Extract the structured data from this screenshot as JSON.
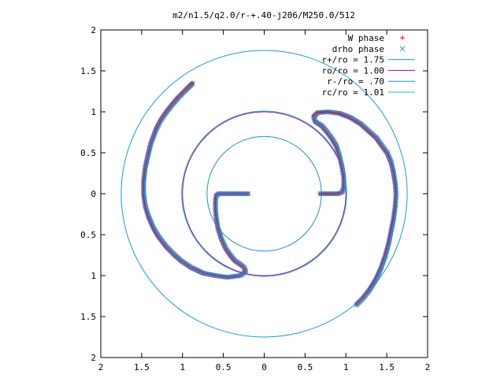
{
  "chart_data": {
    "type": "scatter",
    "title": "m2/n1.5/q2.0/r-+.40-j206/M250.0/512",
    "xlabel": "",
    "ylabel": "",
    "xlim": [
      -2,
      2
    ],
    "ylim": [
      -2,
      2
    ],
    "grid": false,
    "legend_position": "top-right",
    "x_ticks": [
      "2",
      "1.5",
      "1",
      "0.5",
      "0",
      "0.5",
      "1",
      "1.5",
      "2"
    ],
    "y_ticks": [
      "2",
      "1.5",
      "1",
      "0.5",
      "0",
      "0.5",
      "1",
      "1.5",
      "2"
    ],
    "circles": [
      {
        "name": "r+/ro = 1.75",
        "radius": 1.75,
        "color": "#1f9ad8"
      },
      {
        "name": "ro/ro = 1.00",
        "radius": 1.0,
        "color": "#a000a0"
      },
      {
        "name": "r-/ro = .70",
        "radius": 0.7,
        "color": "#1f8fd0"
      },
      {
        "name": "rc/ro = 1.01",
        "radius": 1.01,
        "color": "#20c0c0"
      }
    ],
    "series": [
      {
        "name": "W phase",
        "marker": "+",
        "color": "#e01010"
      },
      {
        "name": "drho phase",
        "marker": "x",
        "color": "#2a8ee6"
      }
    ],
    "arm_paths": [
      [
        [
          -0.2,
          0.0
        ],
        [
          -0.3,
          0.0
        ],
        [
          -0.4,
          0.0
        ],
        [
          -0.5,
          0.0
        ],
        [
          -0.56,
          0.0
        ],
        [
          -0.59,
          -0.02
        ],
        [
          -0.6,
          -0.08
        ],
        [
          -0.6,
          -0.2
        ],
        [
          -0.59,
          -0.3
        ],
        [
          -0.57,
          -0.42
        ],
        [
          -0.53,
          -0.55
        ],
        [
          -0.48,
          -0.66
        ],
        [
          -0.42,
          -0.75
        ],
        [
          -0.36,
          -0.82
        ],
        [
          -0.3,
          -0.86
        ],
        [
          -0.25,
          -0.9
        ],
        [
          -0.23,
          -0.95
        ],
        [
          -0.3,
          -1.0
        ],
        [
          -0.45,
          -1.02
        ],
        [
          -0.6,
          -1.0
        ],
        [
          -0.75,
          -0.97
        ],
        [
          -0.9,
          -0.9
        ],
        [
          -1.02,
          -0.82
        ],
        [
          -1.1,
          -0.75
        ],
        [
          -1.2,
          -0.65
        ],
        [
          -1.3,
          -0.52
        ],
        [
          -1.36,
          -0.42
        ],
        [
          -1.42,
          -0.28
        ],
        [
          -1.46,
          -0.15
        ],
        [
          -1.48,
          0.0
        ],
        [
          -1.48,
          0.15
        ],
        [
          -1.46,
          0.32
        ],
        [
          -1.42,
          0.5
        ],
        [
          -1.39,
          0.62
        ],
        [
          -1.33,
          0.78
        ],
        [
          -1.27,
          0.9
        ],
        [
          -1.2,
          1.0
        ],
        [
          -1.12,
          1.1
        ],
        [
          -1.06,
          1.17
        ],
        [
          -1.0,
          1.23
        ],
        [
          -0.95,
          1.28
        ],
        [
          -0.91,
          1.32
        ],
        [
          -0.88,
          1.35
        ]
      ],
      [
        [
          0.68,
          0.0
        ],
        [
          0.8,
          0.0
        ],
        [
          0.9,
          0.0
        ],
        [
          0.95,
          0.02
        ],
        [
          0.97,
          0.08
        ],
        [
          0.97,
          0.2
        ],
        [
          0.95,
          0.32
        ],
        [
          0.92,
          0.45
        ],
        [
          0.88,
          0.58
        ],
        [
          0.82,
          0.68
        ],
        [
          0.76,
          0.76
        ],
        [
          0.7,
          0.83
        ],
        [
          0.62,
          0.88
        ],
        [
          0.6,
          0.94
        ],
        [
          0.65,
          0.99
        ],
        [
          0.78,
          1.0
        ],
        [
          0.92,
          0.98
        ],
        [
          1.05,
          0.93
        ],
        [
          1.18,
          0.85
        ],
        [
          1.28,
          0.76
        ],
        [
          1.37,
          0.68
        ],
        [
          1.44,
          0.58
        ],
        [
          1.5,
          0.5
        ],
        [
          1.55,
          0.38
        ],
        [
          1.58,
          0.25
        ],
        [
          1.6,
          0.12
        ],
        [
          1.61,
          0.0
        ],
        [
          1.6,
          -0.15
        ],
        [
          1.58,
          -0.3
        ],
        [
          1.55,
          -0.45
        ],
        [
          1.52,
          -0.6
        ],
        [
          1.48,
          -0.75
        ],
        [
          1.42,
          -0.92
        ],
        [
          1.36,
          -1.05
        ],
        [
          1.28,
          -1.18
        ],
        [
          1.2,
          -1.28
        ],
        [
          1.12,
          -1.36
        ]
      ]
    ]
  }
}
